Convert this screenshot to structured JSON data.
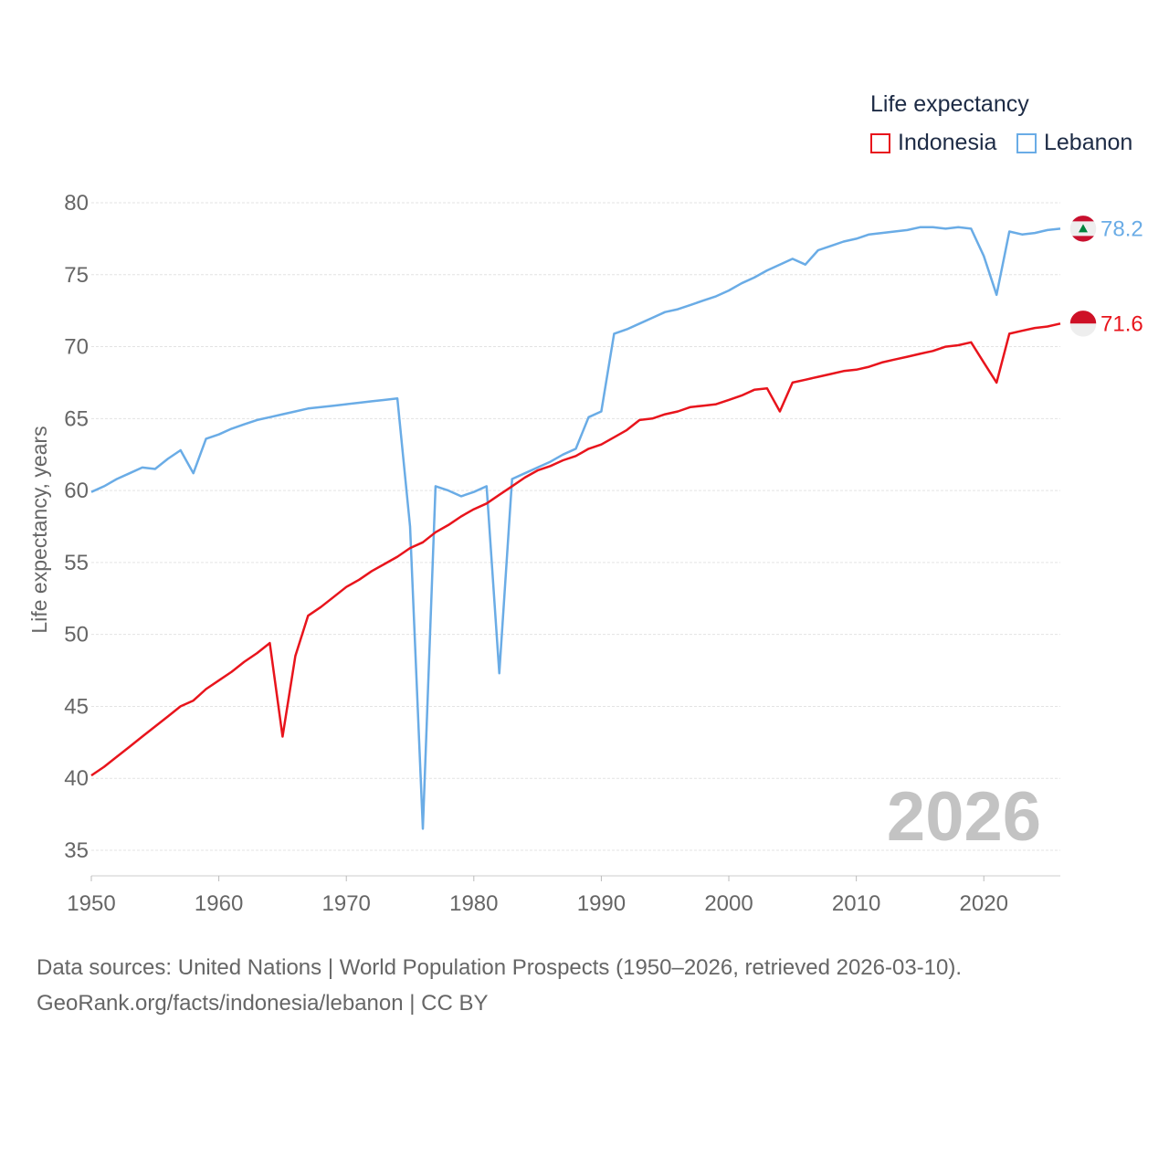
{
  "legend": {
    "title": "Life expectancy",
    "items": [
      {
        "label": "Indonesia",
        "color": "#e8141c"
      },
      {
        "label": "Lebanon",
        "color": "#6aace6"
      }
    ]
  },
  "source": {
    "line1": "Data sources: United Nations | World Population Prospects (1950–2026, retrieved 2026-03-10).",
    "line2": "GeoRank.org/facts/indonesia/lebanon | CC BY"
  },
  "chart_data": {
    "type": "line",
    "title": "Life expectancy",
    "ylabel": "Life expectancy, years",
    "xlabel": "",
    "xlim": [
      1950,
      2026
    ],
    "ylim": [
      35,
      80
    ],
    "x_ticks": [
      "1950",
      "1960",
      "1970",
      "1980",
      "1990",
      "2000",
      "2010",
      "2020"
    ],
    "y_ticks": [
      "35",
      "40",
      "45",
      "50",
      "55",
      "60",
      "65",
      "70",
      "75",
      "80"
    ],
    "year_label": "2026",
    "legend_position": "top-right",
    "series": [
      {
        "name": "Indonesia",
        "color": "#e8141c",
        "end_label": "71.6",
        "flag_icon": "indonesia-flag-icon",
        "points": [
          [
            1950,
            40.2
          ],
          [
            1951,
            40.8
          ],
          [
            1952,
            41.5
          ],
          [
            1953,
            42.2
          ],
          [
            1954,
            42.9
          ],
          [
            1955,
            43.6
          ],
          [
            1956,
            44.3
          ],
          [
            1957,
            45.0
          ],
          [
            1958,
            45.4
          ],
          [
            1959,
            46.2
          ],
          [
            1960,
            46.8
          ],
          [
            1961,
            47.4
          ],
          [
            1962,
            48.1
          ],
          [
            1963,
            48.7
          ],
          [
            1964,
            49.4
          ],
          [
            1965,
            42.9
          ],
          [
            1966,
            48.5
          ],
          [
            1967,
            51.3
          ],
          [
            1968,
            51.9
          ],
          [
            1969,
            52.6
          ],
          [
            1970,
            53.3
          ],
          [
            1971,
            53.8
          ],
          [
            1972,
            54.4
          ],
          [
            1973,
            54.9
          ],
          [
            1974,
            55.4
          ],
          [
            1975,
            56.0
          ],
          [
            1976,
            56.4
          ],
          [
            1977,
            57.1
          ],
          [
            1978,
            57.6
          ],
          [
            1979,
            58.2
          ],
          [
            1980,
            58.7
          ],
          [
            1981,
            59.1
          ],
          [
            1982,
            59.7
          ],
          [
            1983,
            60.3
          ],
          [
            1984,
            60.9
          ],
          [
            1985,
            61.4
          ],
          [
            1986,
            61.7
          ],
          [
            1987,
            62.1
          ],
          [
            1988,
            62.4
          ],
          [
            1989,
            62.9
          ],
          [
            1990,
            63.2
          ],
          [
            1991,
            63.7
          ],
          [
            1992,
            64.2
          ],
          [
            1993,
            64.9
          ],
          [
            1994,
            65.0
          ],
          [
            1995,
            65.3
          ],
          [
            1996,
            65.5
          ],
          [
            1997,
            65.8
          ],
          [
            1998,
            65.9
          ],
          [
            1999,
            66.0
          ],
          [
            2000,
            66.3
          ],
          [
            2001,
            66.6
          ],
          [
            2002,
            67.0
          ],
          [
            2003,
            67.1
          ],
          [
            2004,
            65.5
          ],
          [
            2005,
            67.5
          ],
          [
            2006,
            67.7
          ],
          [
            2007,
            67.9
          ],
          [
            2008,
            68.1
          ],
          [
            2009,
            68.3
          ],
          [
            2010,
            68.4
          ],
          [
            2011,
            68.6
          ],
          [
            2012,
            68.9
          ],
          [
            2013,
            69.1
          ],
          [
            2014,
            69.3
          ],
          [
            2015,
            69.5
          ],
          [
            2016,
            69.7
          ],
          [
            2017,
            70.0
          ],
          [
            2018,
            70.1
          ],
          [
            2019,
            70.3
          ],
          [
            2020,
            68.9
          ],
          [
            2021,
            67.5
          ],
          [
            2022,
            70.9
          ],
          [
            2023,
            71.1
          ],
          [
            2024,
            71.3
          ],
          [
            2025,
            71.4
          ],
          [
            2026,
            71.6
          ]
        ]
      },
      {
        "name": "Lebanon",
        "color": "#6aace6",
        "end_label": "78.2",
        "flag_icon": "lebanon-flag-icon",
        "points": [
          [
            1950,
            59.9
          ],
          [
            1951,
            60.3
          ],
          [
            1952,
            60.8
          ],
          [
            1953,
            61.2
          ],
          [
            1954,
            61.6
          ],
          [
            1955,
            61.5
          ],
          [
            1956,
            62.2
          ],
          [
            1957,
            62.8
          ],
          [
            1958,
            61.2
          ],
          [
            1959,
            63.6
          ],
          [
            1960,
            63.9
          ],
          [
            1961,
            64.3
          ],
          [
            1962,
            64.6
          ],
          [
            1963,
            64.9
          ],
          [
            1964,
            65.1
          ],
          [
            1965,
            65.3
          ],
          [
            1966,
            65.5
          ],
          [
            1967,
            65.7
          ],
          [
            1968,
            65.8
          ],
          [
            1969,
            65.9
          ],
          [
            1970,
            66.0
          ],
          [
            1971,
            66.1
          ],
          [
            1972,
            66.2
          ],
          [
            1973,
            66.3
          ],
          [
            1974,
            66.4
          ],
          [
            1975,
            57.5
          ],
          [
            1976,
            36.5
          ],
          [
            1977,
            60.3
          ],
          [
            1978,
            60.0
          ],
          [
            1979,
            59.6
          ],
          [
            1980,
            59.9
          ],
          [
            1981,
            60.3
          ],
          [
            1982,
            47.3
          ],
          [
            1983,
            60.8
          ],
          [
            1984,
            61.2
          ],
          [
            1985,
            61.6
          ],
          [
            1986,
            62.0
          ],
          [
            1987,
            62.5
          ],
          [
            1988,
            62.9
          ],
          [
            1989,
            65.1
          ],
          [
            1990,
            65.5
          ],
          [
            1991,
            70.9
          ],
          [
            1992,
            71.2
          ],
          [
            1993,
            71.6
          ],
          [
            1994,
            72.0
          ],
          [
            1995,
            72.4
          ],
          [
            1996,
            72.6
          ],
          [
            1997,
            72.9
          ],
          [
            1998,
            73.2
          ],
          [
            1999,
            73.5
          ],
          [
            2000,
            73.9
          ],
          [
            2001,
            74.4
          ],
          [
            2002,
            74.8
          ],
          [
            2003,
            75.3
          ],
          [
            2004,
            75.7
          ],
          [
            2005,
            76.1
          ],
          [
            2006,
            75.7
          ],
          [
            2007,
            76.7
          ],
          [
            2008,
            77.0
          ],
          [
            2009,
            77.3
          ],
          [
            2010,
            77.5
          ],
          [
            2011,
            77.8
          ],
          [
            2012,
            77.9
          ],
          [
            2013,
            78.0
          ],
          [
            2014,
            78.1
          ],
          [
            2015,
            78.3
          ],
          [
            2016,
            78.3
          ],
          [
            2017,
            78.2
          ],
          [
            2018,
            78.3
          ],
          [
            2019,
            78.2
          ],
          [
            2020,
            76.3
          ],
          [
            2021,
            73.6
          ],
          [
            2022,
            78.0
          ],
          [
            2023,
            77.8
          ],
          [
            2024,
            77.9
          ],
          [
            2025,
            78.1
          ],
          [
            2026,
            78.2
          ]
        ]
      }
    ]
  }
}
